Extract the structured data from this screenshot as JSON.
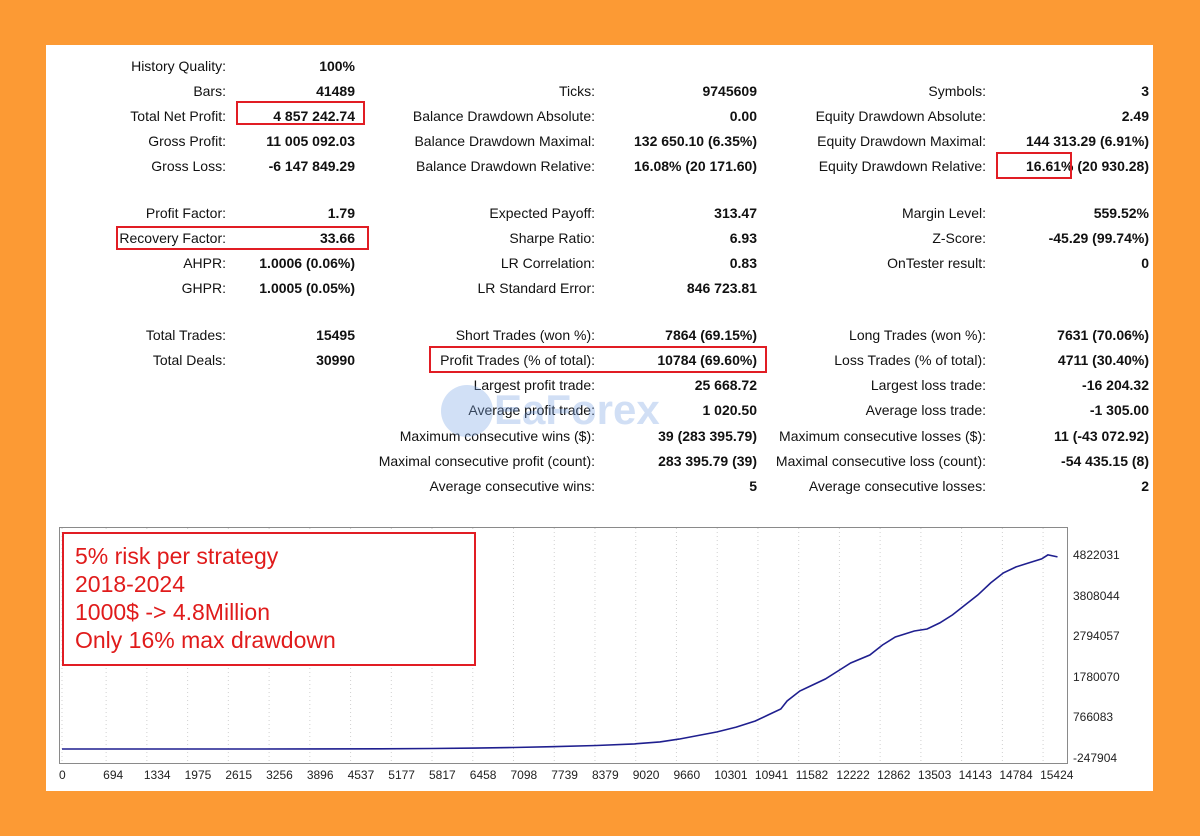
{
  "report": {
    "col1": [
      {
        "label": "History Quality:",
        "value": "100%"
      },
      {
        "label": "Bars:",
        "value": "41489"
      },
      {
        "label": "Total Net Profit:",
        "value": "4 857 242.74"
      },
      {
        "label": "Gross Profit:",
        "value": "11 005 092.03"
      },
      {
        "label": "Gross Loss:",
        "value": "-6 147 849.29"
      },
      {
        "label": "Profit Factor:",
        "value": "1.79"
      },
      {
        "label": "Recovery Factor:",
        "value": "33.66"
      },
      {
        "label": "AHPR:",
        "value": "1.0006 (0.06%)"
      },
      {
        "label": "GHPR:",
        "value": "1.0005 (0.05%)"
      },
      {
        "label": "Total Trades:",
        "value": "15495"
      },
      {
        "label": "Total Deals:",
        "value": "30990"
      }
    ],
    "col2": [
      {
        "label": "Ticks:",
        "value": "9745609"
      },
      {
        "label": "Balance Drawdown Absolute:",
        "value": "0.00"
      },
      {
        "label": "Balance Drawdown Maximal:",
        "value": "132 650.10 (6.35%)"
      },
      {
        "label": "Balance Drawdown Relative:",
        "value": "16.08% (20 171.60)"
      },
      {
        "label": "Expected Payoff:",
        "value": "313.47"
      },
      {
        "label": "Sharpe Ratio:",
        "value": "6.93"
      },
      {
        "label": "LR Correlation:",
        "value": "0.83"
      },
      {
        "label": "LR Standard Error:",
        "value": "846 723.81"
      },
      {
        "label": "Short Trades (won %):",
        "value": "7864 (69.15%)"
      },
      {
        "label": "Profit Trades (% of total):",
        "value": "10784 (69.60%)"
      },
      {
        "label": "Largest profit trade:",
        "value": "25 668.72"
      },
      {
        "label": "Average profit trade:",
        "value": "1 020.50"
      },
      {
        "label": "Maximum consecutive wins ($):",
        "value": "39 (283 395.79)"
      },
      {
        "label": "Maximal consecutive profit (count):",
        "value": "283 395.79 (39)"
      },
      {
        "label": "Average consecutive wins:",
        "value": "5"
      }
    ],
    "col3": [
      {
        "label": "Symbols:",
        "value": "3"
      },
      {
        "label": "Equity Drawdown Absolute:",
        "value": "2.49"
      },
      {
        "label": "Equity Drawdown Maximal:",
        "value": "144 313.29 (6.91%)"
      },
      {
        "label": "Equity Drawdown Relative:",
        "value": "16.61% (20 930.28)"
      },
      {
        "label": "Margin Level:",
        "value": "559.52%"
      },
      {
        "label": "Z-Score:",
        "value": "-45.29 (99.74%)"
      },
      {
        "label": "OnTester result:",
        "value": "0"
      },
      {
        "label": "Long Trades (won %):",
        "value": "7631 (70.06%)"
      },
      {
        "label": "Loss Trades (% of total):",
        "value": "4711 (30.40%)"
      },
      {
        "label": "Largest loss trade:",
        "value": "-16 204.32"
      },
      {
        "label": "Average loss trade:",
        "value": "-1 305.00"
      },
      {
        "label": "Maximum consecutive losses ($):",
        "value": "11 (-43 072.92)"
      },
      {
        "label": "Maximal consecutive loss (count):",
        "value": "-54 435.15 (8)"
      },
      {
        "label": "Average consecutive losses:",
        "value": "2"
      }
    ]
  },
  "annotation": [
    "5% risk per strategy",
    "2018-2024",
    "1000$ -> 4.8Million",
    "Only 16% max drawdown"
  ],
  "watermark": "EaForex",
  "colors": {
    "background": "#fc9a34",
    "highlight": "#e11d24",
    "line": "#1f1f8f",
    "annotation_text": "#e01b1b"
  },
  "chart_data": {
    "type": "line",
    "y_ticks": [
      "4822031",
      "3808044",
      "2794057",
      "1780070",
      "766083",
      "-247904"
    ],
    "x_ticks": [
      "0",
      "694",
      "1334",
      "1975",
      "2615",
      "3256",
      "3896",
      "4537",
      "5177",
      "5817",
      "6458",
      "7098",
      "7739",
      "8379",
      "9020",
      "9660",
      "10301",
      "10941",
      "11582",
      "12222",
      "12862",
      "13503",
      "14143",
      "14784",
      "15424"
    ],
    "ylim": [
      -247904,
      4822031
    ],
    "xlim": [
      0,
      15800
    ],
    "grid": "vertical",
    "series": [
      {
        "x": [
          0,
          1000,
          2000,
          3000,
          4000,
          5000,
          5800,
          6500,
          7100,
          7700,
          8400,
          9000,
          9400,
          9700,
          10000,
          10300,
          10600,
          10900,
          11100,
          11300,
          11400,
          11600,
          11800,
          12000,
          12200,
          12400,
          12700,
          12900,
          13100,
          13400,
          13600,
          13800,
          14000,
          14200,
          14400,
          14600,
          14800,
          15000,
          15200,
          15400,
          15500,
          15650
        ],
        "y": [
          1000,
          1000,
          2000,
          3000,
          5000,
          8000,
          15000,
          25000,
          40000,
          60000,
          90000,
          130000,
          180000,
          250000,
          340000,
          430000,
          550000,
          700000,
          850000,
          1000000,
          1200000,
          1450000,
          1600000,
          1750000,
          1950000,
          2150000,
          2350000,
          2600000,
          2800000,
          2950000,
          3000000,
          3150000,
          3350000,
          3600000,
          3850000,
          4150000,
          4400000,
          4550000,
          4650000,
          4750000,
          4850000,
          4800000
        ]
      }
    ]
  }
}
